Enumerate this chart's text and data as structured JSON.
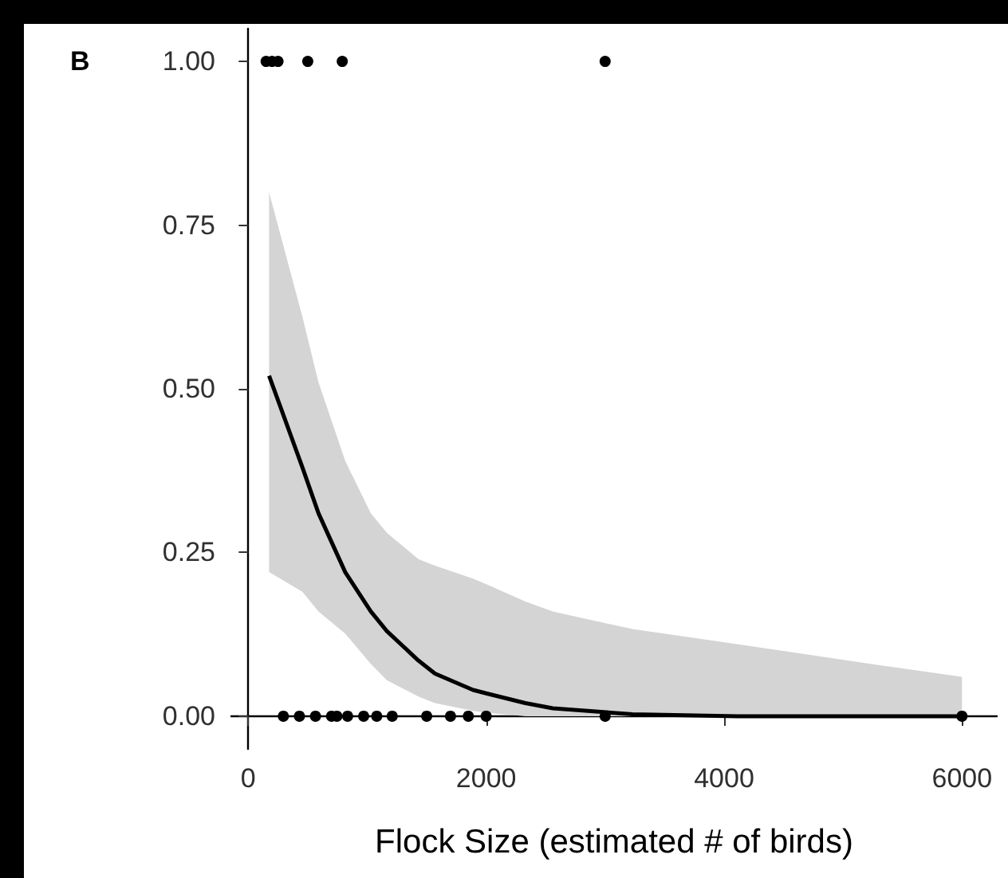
{
  "chart_data": {
    "type": "scatter",
    "title": "B",
    "xlabel": "Flock Size (estimated # of birds)",
    "xlim": [
      -143,
      6293
    ],
    "ylim": [
      -0.05,
      1.05
    ],
    "xticks": [
      0,
      2000,
      4000,
      6000
    ],
    "yticks": [
      {
        "value": 0,
        "label": "0.00"
      },
      {
        "value": 0.25,
        "label": "0.25"
      },
      {
        "value": 0.5,
        "label": "0.50"
      },
      {
        "value": 0.75,
        "label": "0.75"
      },
      {
        "value": 1,
        "label": "1.00"
      }
    ],
    "grid": false,
    "series": [
      {
        "color": "#000000",
        "marker": "circle",
        "x": [
          295,
          430,
          565,
          700,
          745,
          835,
          970,
          1080,
          1210,
          1500,
          1700,
          1850,
          2000,
          3000,
          6000,
          150,
          200,
          250,
          500,
          790,
          3000
        ],
        "values": [
          0,
          0,
          0,
          0,
          0,
          0,
          0,
          0,
          0,
          0,
          0,
          0,
          0,
          0,
          0,
          1,
          1,
          1,
          1,
          1,
          1
        ]
      },
      {
        "type": "line",
        "color": "#000000",
        "line_style": "solid",
        "marker": "none",
        "x": [
          175,
          455,
          590,
          815,
          1030,
          1165,
          1430,
          1570,
          1890,
          2020,
          2330,
          2560,
          3230,
          4110,
          5230,
          6000
        ],
        "values": [
          0.52,
          0.38,
          0.31,
          0.22,
          0.16,
          0.13,
          0.085,
          0.065,
          0.04,
          0.034,
          0.02,
          0.012,
          0.003,
          0,
          0,
          0
        ],
        "lower": [
          0.22,
          0.19,
          0.16,
          0.126,
          0.08,
          0.055,
          0.03,
          0.02,
          0.008,
          0.005,
          0,
          0,
          0,
          0,
          0,
          0
        ],
        "upper": [
          0.8,
          0.61,
          0.51,
          0.39,
          0.31,
          0.28,
          0.24,
          0.23,
          0.21,
          0.2,
          0.175,
          0.16,
          0.133,
          0.11,
          0.08,
          0.06
        ]
      }
    ]
  }
}
